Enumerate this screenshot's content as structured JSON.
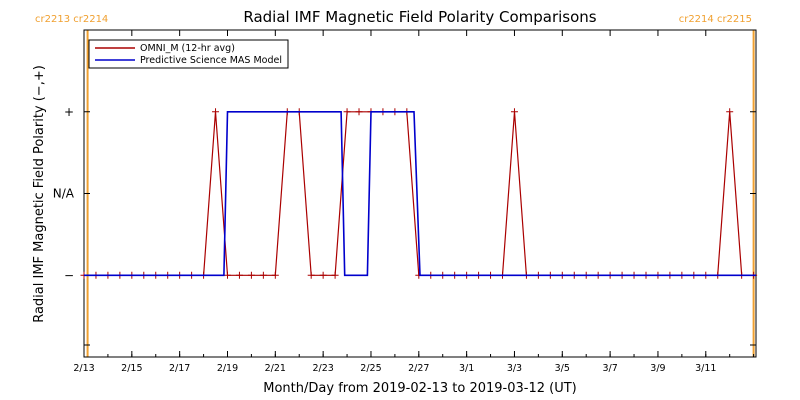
{
  "chart_data": {
    "type": "line",
    "title": "Radial IMF Magnetic Field Polarity Comparisons",
    "xlabel": "Month/Day from 2019-02-13 to 2019-03-12 (UT)",
    "ylabel": "Radial IMF Magnetic Field Polarity (−,+)",
    "x_range_days": [
      0,
      28.1
    ],
    "y_ticks": [
      {
        "value": 1,
        "label": "+"
      },
      {
        "value": 0,
        "label": "N/A"
      },
      {
        "value": -1,
        "label": "−"
      }
    ],
    "ylim": [
      -2,
      2
    ],
    "x_ticks": [
      {
        "day": 0,
        "label": "2/13"
      },
      {
        "day": 2,
        "label": "2/15"
      },
      {
        "day": 4,
        "label": "2/17"
      },
      {
        "day": 6,
        "label": "2/19"
      },
      {
        "day": 8,
        "label": "2/21"
      },
      {
        "day": 10,
        "label": "2/23"
      },
      {
        "day": 12,
        "label": "2/25"
      },
      {
        "day": 14,
        "label": "2/27"
      },
      {
        "day": 16,
        "label": "3/1"
      },
      {
        "day": 18,
        "label": "3/3"
      },
      {
        "day": 20,
        "label": "3/5"
      },
      {
        "day": 22,
        "label": "3/7"
      },
      {
        "day": 24,
        "label": "3/9"
      },
      {
        "day": 26,
        "label": "3/11"
      }
    ],
    "carrington_markers": [
      {
        "day": 0.15,
        "label": "cr2213 cr2214",
        "side": "left"
      },
      {
        "day": 28.0,
        "label": "cr2214 cr2215",
        "side": "right"
      }
    ],
    "series": [
      {
        "name": "OMNI_M (12-hr avg)",
        "color": "#aa0000",
        "marker": "+",
        "points": [
          [
            0,
            -1
          ],
          [
            0.5,
            -1
          ],
          [
            1,
            -1
          ],
          [
            1.5,
            -1
          ],
          [
            2,
            -1
          ],
          [
            2.5,
            -1
          ],
          [
            3,
            -1
          ],
          [
            3.5,
            -1
          ],
          [
            4,
            -1
          ],
          [
            4.5,
            -1
          ],
          [
            5,
            -1
          ],
          [
            5.5,
            1
          ],
          [
            6,
            -1
          ],
          [
            6.5,
            -1
          ],
          [
            7,
            -1
          ],
          [
            7.5,
            -1
          ],
          [
            8,
            -1
          ],
          [
            8.5,
            1
          ],
          [
            9,
            1
          ],
          [
            9.5,
            -1
          ],
          [
            10,
            -1
          ],
          [
            10.5,
            -1
          ],
          [
            11,
            1
          ],
          [
            11.5,
            1
          ],
          [
            12,
            1
          ],
          [
            12.5,
            1
          ],
          [
            13,
            1
          ],
          [
            13.5,
            1
          ],
          [
            14,
            -1
          ],
          [
            14.5,
            -1
          ],
          [
            15,
            -1
          ],
          [
            15.5,
            -1
          ],
          [
            16,
            -1
          ],
          [
            16.5,
            -1
          ],
          [
            17,
            -1
          ],
          [
            17.5,
            -1
          ],
          [
            18,
            1
          ],
          [
            18.5,
            -1
          ],
          [
            19,
            -1
          ],
          [
            19.5,
            -1
          ],
          [
            20,
            -1
          ],
          [
            20.5,
            -1
          ],
          [
            21,
            -1
          ],
          [
            21.5,
            -1
          ],
          [
            22,
            -1
          ],
          [
            22.5,
            -1
          ],
          [
            23,
            -1
          ],
          [
            23.5,
            -1
          ],
          [
            24,
            -1
          ],
          [
            24.5,
            -1
          ],
          [
            25,
            -1
          ],
          [
            25.5,
            -1
          ],
          [
            26,
            -1
          ],
          [
            26.5,
            -1
          ],
          [
            27,
            1
          ],
          [
            27.5,
            -1
          ],
          [
            28,
            -1
          ]
        ]
      },
      {
        "name": "Predictive Science MAS Model",
        "color": "#0000cc",
        "points": [
          [
            0,
            -1
          ],
          [
            5.85,
            -1
          ],
          [
            6.0,
            1
          ],
          [
            10.75,
            1
          ],
          [
            10.9,
            -1
          ],
          [
            11.85,
            -1
          ],
          [
            12.0,
            1
          ],
          [
            13.8,
            1
          ],
          [
            14.05,
            -1
          ],
          [
            28.1,
            -1
          ]
        ]
      }
    ],
    "legend_position": "top-left"
  }
}
